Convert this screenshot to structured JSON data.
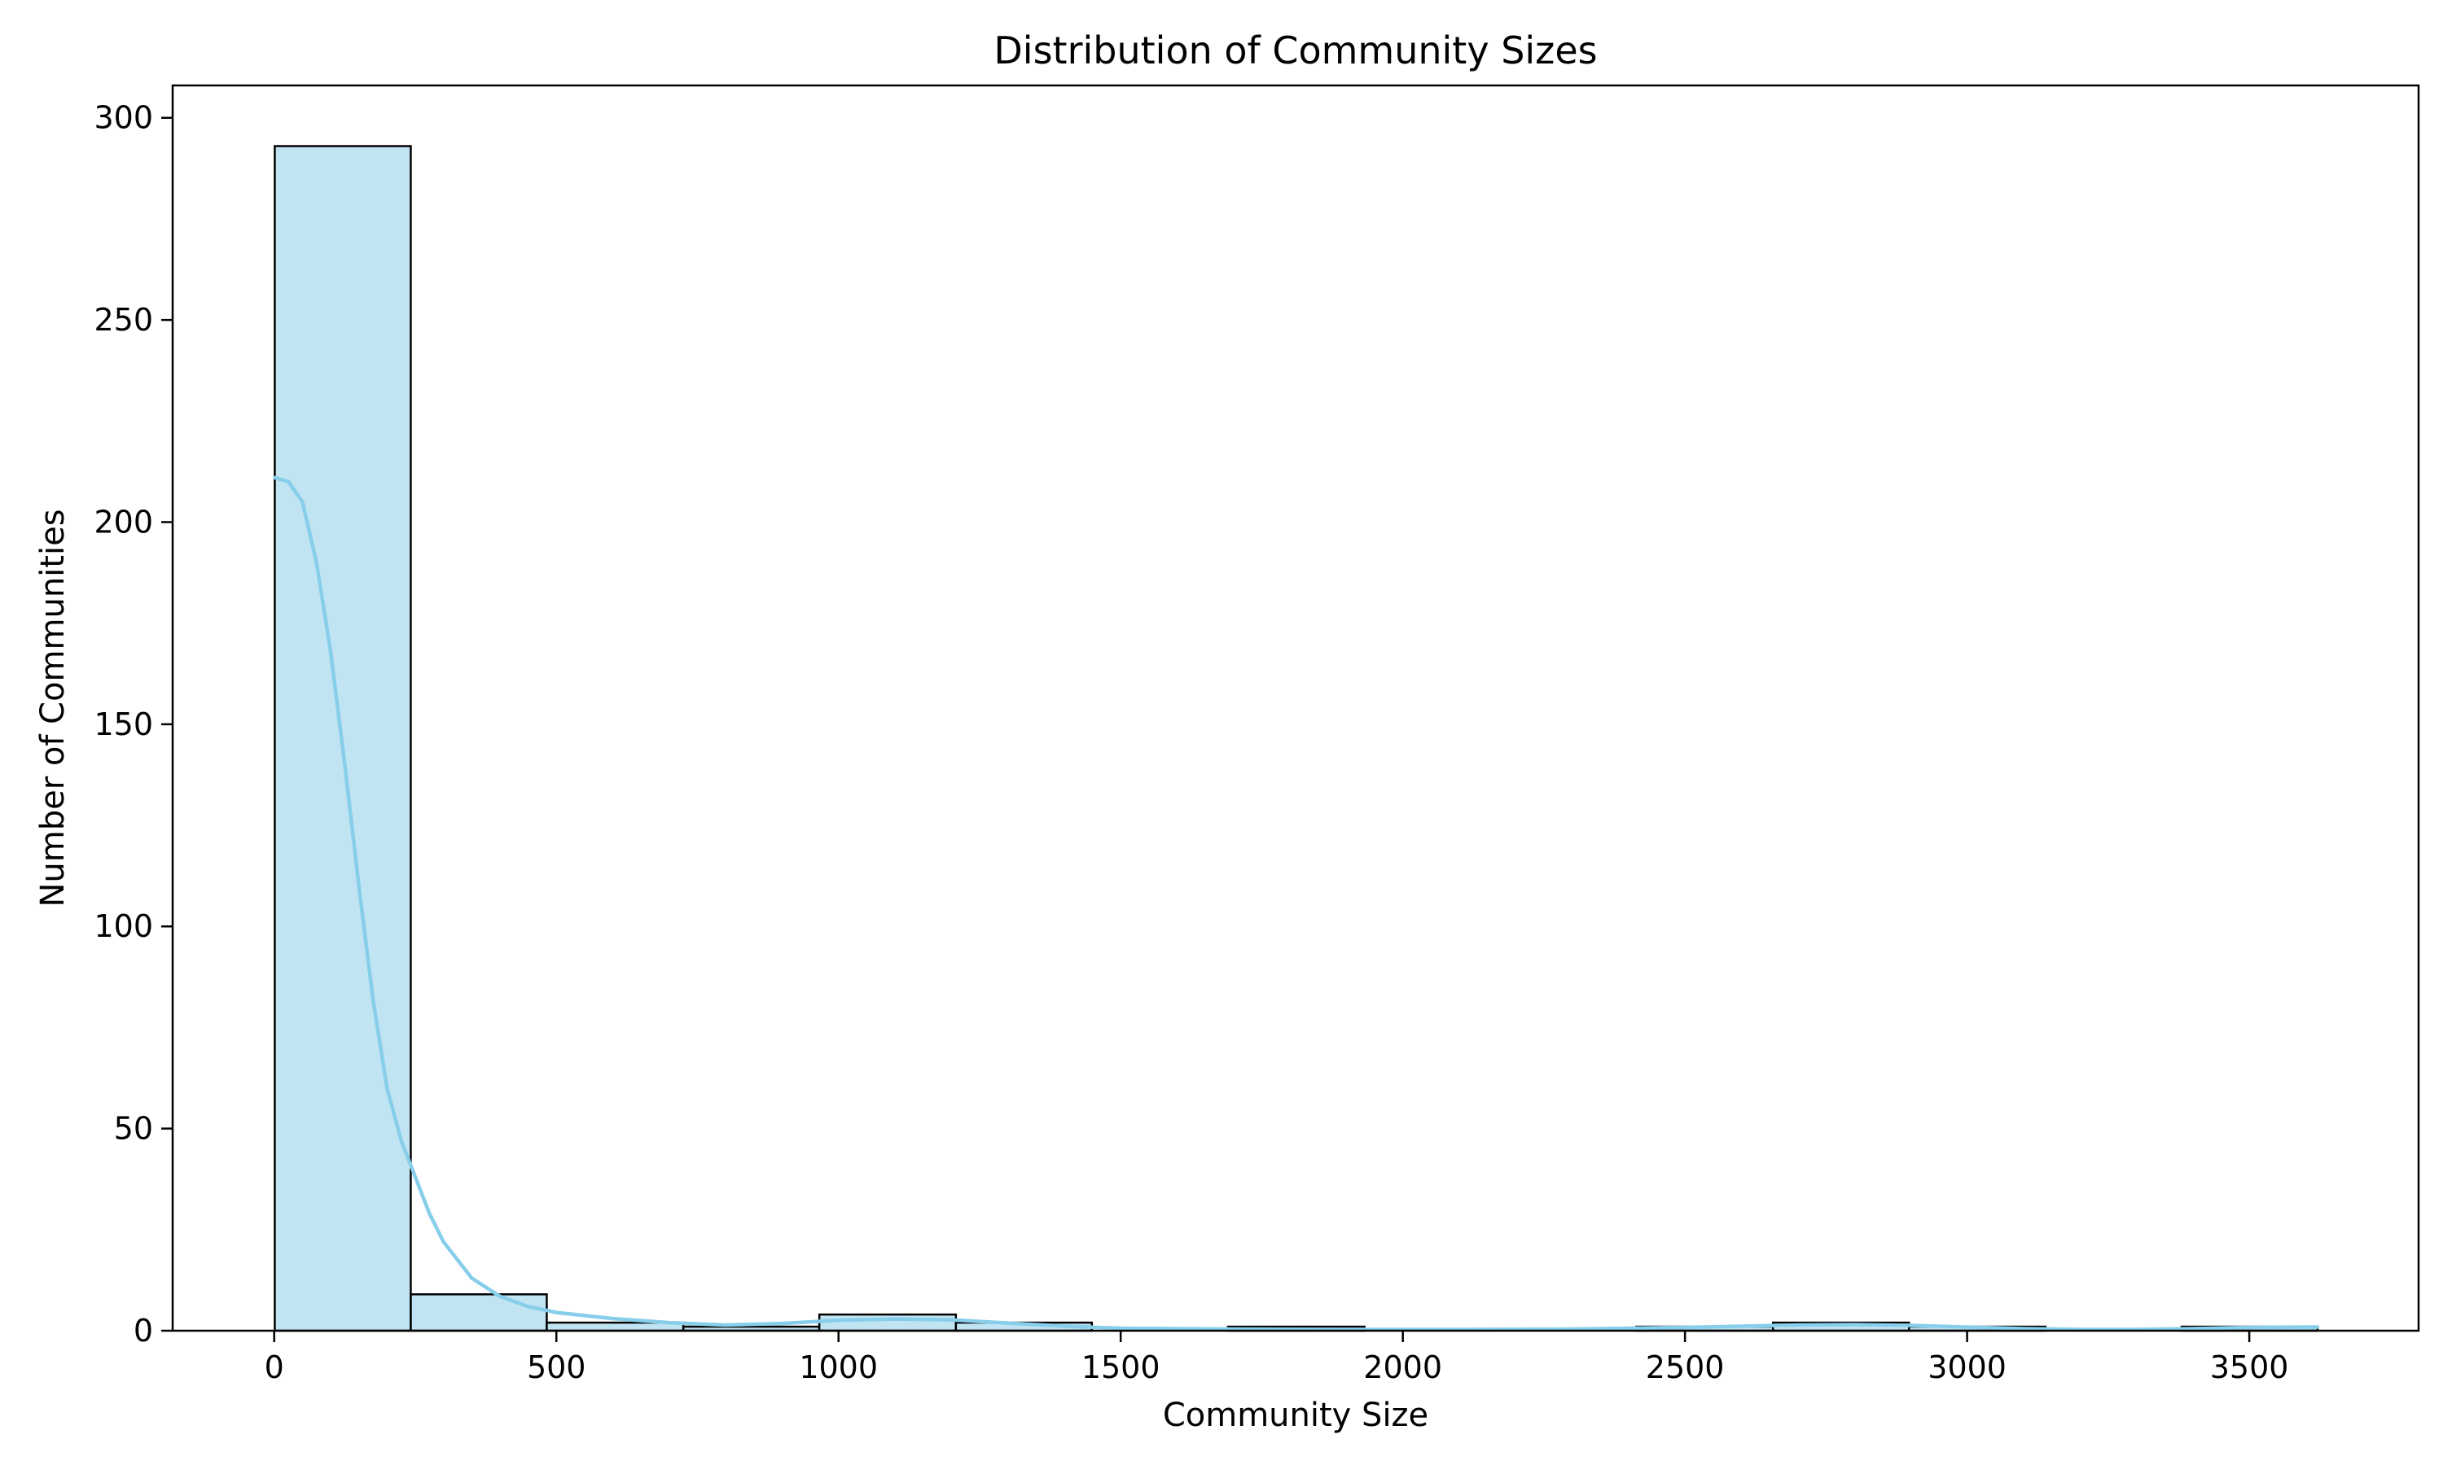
{
  "chart_data": {
    "type": "bar",
    "title": "Distribution of Community Sizes",
    "xlabel": "Community Size",
    "ylabel": "Number of Communities",
    "xlim": [
      -180,
      3800
    ],
    "ylim": [
      0,
      308
    ],
    "x_ticks": [
      0,
      500,
      1000,
      1500,
      2000,
      2500,
      3000,
      3500
    ],
    "y_ticks": [
      0,
      50,
      100,
      150,
      200,
      250,
      300
    ],
    "bin_edges": [
      1,
      242,
      483,
      725,
      966,
      1208,
      1449,
      1690,
      1932,
      2173,
      2414,
      2656,
      2897,
      3139,
      3380,
      3621
    ],
    "counts": [
      293,
      9,
      2,
      1,
      4,
      2,
      0,
      1,
      0,
      0,
      1,
      2,
      1,
      0,
      1
    ],
    "kde": {
      "x": [
        1,
        25,
        50,
        75,
        100,
        125,
        150,
        175,
        200,
        225,
        250,
        275,
        300,
        350,
        400,
        450,
        500,
        600,
        700,
        800,
        900,
        1000,
        1100,
        1200,
        1300,
        1400,
        1500,
        1700,
        1900,
        2100,
        2300,
        2500,
        2600,
        2700,
        2800,
        2900,
        3000,
        3100,
        3200,
        3300,
        3400,
        3500,
        3621
      ],
      "y": [
        211,
        210,
        205,
        190,
        168,
        140,
        110,
        82,
        60,
        47,
        38,
        29,
        22,
        13,
        8.5,
        6,
        4.5,
        3,
        2,
        1.4,
        1.8,
        2.6,
        2.9,
        2.7,
        1.9,
        1.1,
        0.6,
        0.4,
        0.3,
        0.3,
        0.4,
        0.8,
        1.1,
        1.4,
        1.5,
        1.3,
        0.9,
        0.5,
        0.3,
        0.3,
        0.5,
        0.8,
        0.9
      ]
    },
    "grid": false,
    "legend": "none",
    "colors": {
      "bar_fill": "#c1e4f3",
      "bar_edge": "#000000",
      "kde_line": "#87ceeb",
      "axis": "#000000",
      "background": "#ffffff"
    }
  }
}
